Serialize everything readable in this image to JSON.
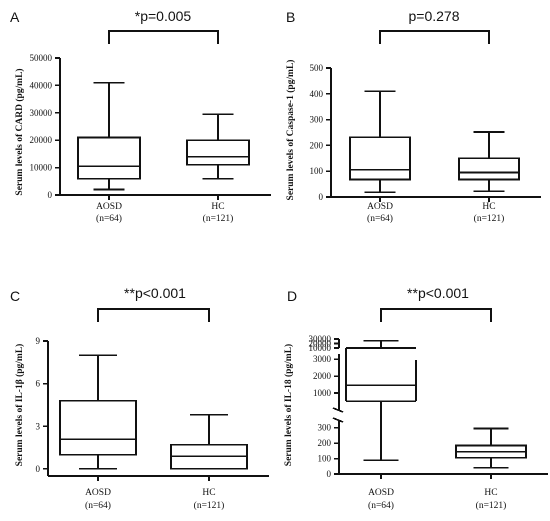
{
  "chart_data": [
    {
      "panel": "A",
      "type": "box",
      "ylabel": "Serum levels of CARD (pg/mL)",
      "ylim": [
        0,
        50000
      ],
      "yticks": [
        0,
        10000,
        20000,
        30000,
        40000,
        50000
      ],
      "ytick_labels": [
        "0",
        "10000",
        "20000",
        "30000",
        "40000",
        "50000"
      ],
      "categories": [
        "AOSD",
        "HC"
      ],
      "group_sizes": [
        "(n=64)",
        "(n=121)"
      ],
      "boxes": [
        {
          "min": 2000,
          "q1": 6000,
          "median": 10500,
          "q3": 21000,
          "max": 41000
        },
        {
          "min": 6000,
          "q1": 11000,
          "median": 14000,
          "q3": 20000,
          "max": 29500
        }
      ],
      "comparison": {
        "label": "*p=0.005",
        "between": [
          "AOSD",
          "HC"
        ]
      }
    },
    {
      "panel": "B",
      "type": "box",
      "ylabel": "Serum levels of Caspase-1 (pg/mL)",
      "ylim": [
        0,
        500
      ],
      "yticks": [
        0,
        100,
        200,
        300,
        400,
        500
      ],
      "ytick_labels": [
        "0",
        "100",
        "200",
        "300",
        "400",
        "500"
      ],
      "categories": [
        "AOSD",
        "HC"
      ],
      "group_sizes": [
        "(n=64)",
        "(n=121)"
      ],
      "boxes": [
        {
          "min": 18,
          "q1": 68,
          "median": 105,
          "q3": 232,
          "max": 410
        },
        {
          "min": 22,
          "q1": 68,
          "median": 95,
          "q3": 150,
          "max": 252
        }
      ],
      "comparison": {
        "label": "p=0.278",
        "between": [
          "AOSD",
          "HC"
        ]
      }
    },
    {
      "panel": "C",
      "type": "box",
      "ylabel": "Serum levels of IL-1β (pg/mL)",
      "ylim": [
        -0.5,
        9
      ],
      "yticks": [
        0,
        3,
        6,
        9
      ],
      "ytick_labels": [
        "0",
        "3",
        "6",
        "9"
      ],
      "categories": [
        "AOSD",
        "HC"
      ],
      "group_sizes": [
        "(n=64)",
        "(n=121)"
      ],
      "boxes": [
        {
          "min": 0.0,
          "q1": 1.0,
          "median": 2.1,
          "q3": 4.8,
          "max": 8.0
        },
        {
          "min": 0.0,
          "q1": 0.0,
          "median": 0.9,
          "q3": 1.7,
          "max": 3.8
        }
      ],
      "comparison": {
        "label": "**p<0.001",
        "between": [
          "AOSD",
          "HC"
        ]
      }
    },
    {
      "panel": "D",
      "type": "box",
      "ylabel": "Serum levels of IL-18 (pg/mL)",
      "axis_break": true,
      "ylim_lower": [
        0,
        350
      ],
      "yticks_lower": [
        0,
        100,
        200,
        300
      ],
      "ylim_middle": [
        0,
        3300
      ],
      "yticks_middle": [
        1000,
        2000,
        3000
      ],
      "ylim_upper": [
        10000,
        30000
      ],
      "yticks_upper": [
        10000,
        20000,
        30000
      ],
      "ytick_labels": [
        "0",
        "100",
        "200",
        "300",
        "1000",
        "2000",
        "3000",
        "10000",
        "20000",
        "30000"
      ],
      "categories": [
        "AOSD",
        "HC"
      ],
      "group_sizes": [
        "(n=64)",
        "(n=121)"
      ],
      "boxes": [
        {
          "min": 90,
          "q1": 520,
          "median": 1450,
          "q3": 2950,
          "max": 26000
        },
        {
          "min": 40,
          "q1": 105,
          "median": 145,
          "q3": 185,
          "max": 295
        }
      ],
      "comparison": {
        "label": "**p<0.001",
        "between": [
          "AOSD",
          "HC"
        ]
      }
    }
  ]
}
